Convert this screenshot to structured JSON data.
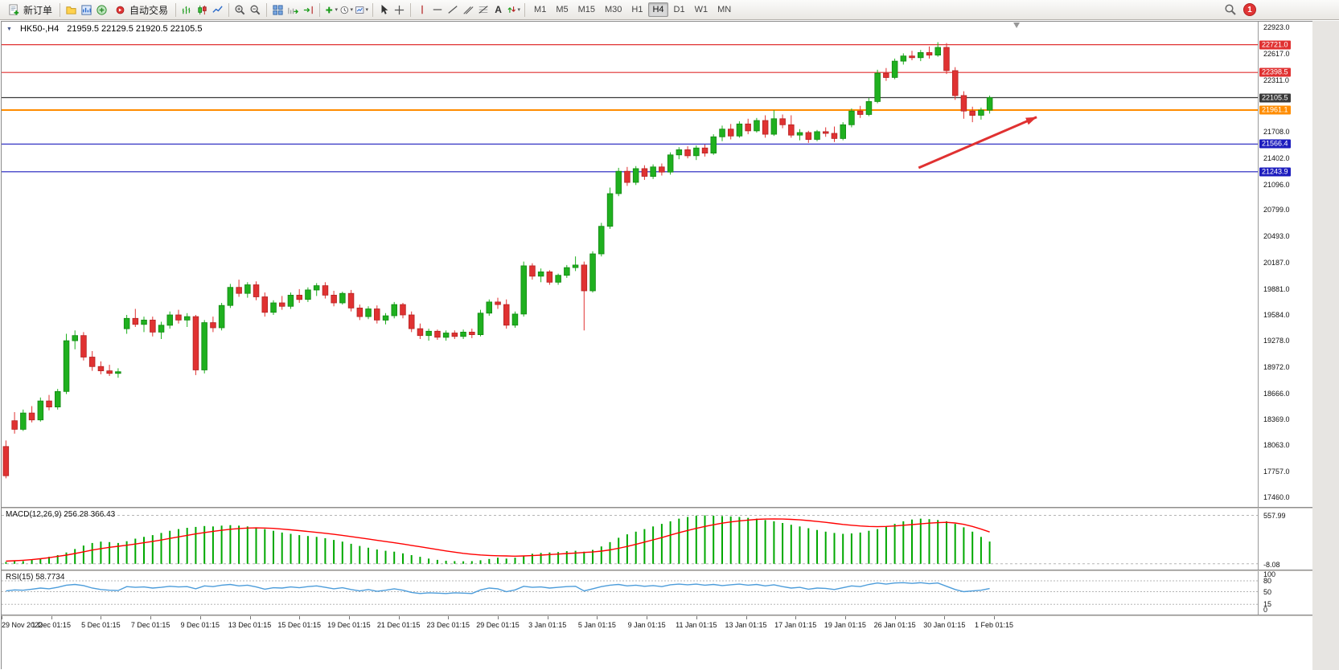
{
  "toolbar": {
    "new_order": "新订单",
    "autotrading": "自动交易",
    "timeframes": [
      "M1",
      "M5",
      "M15",
      "M30",
      "H1",
      "H4",
      "D1",
      "W1",
      "MN"
    ],
    "active_timeframe": "H4",
    "badge_count": "1"
  },
  "chart_window": {
    "symbol_period": "HK50-,H4",
    "ohlc_text": "21959.5 22129.5 21920.5 22105.5"
  },
  "chart_data": {
    "type": "candlestick",
    "symbol": "HK50",
    "period": "H4",
    "last_ohlc": {
      "open": 21959.5,
      "high": 22129.5,
      "low": 21920.5,
      "close": 22105.5
    },
    "price_range": [
      17460.0,
      22923.0
    ],
    "shift_fraction": 0.79,
    "up_color": "#1fb01f",
    "down_color": "#e03232",
    "up_border": "#128812",
    "down_border": "#b42222",
    "price_axis_labels": [
      "22923.0",
      "22617.0",
      "22311.0",
      "21708.0",
      "21402.0",
      "21096.0",
      "20799.0",
      "20493.0",
      "20187.0",
      "19881.0",
      "19584.0",
      "19278.0",
      "18972.0",
      "18666.0",
      "18369.0",
      "18063.0",
      "17757.0",
      "17460.0"
    ],
    "levels": [
      {
        "price": 22721.0,
        "badge": "22721.0",
        "color": "#e03131",
        "width": 1.2
      },
      {
        "price": 22398.5,
        "badge": "22398.5",
        "color": "#e03131",
        "width": 1.2
      },
      {
        "price": 22105.5,
        "badge": "22105.5",
        "color": "#3a3a3a",
        "width": 1.2
      },
      {
        "price": 21961.1,
        "badge": "21961.1",
        "color": "#ff8c00",
        "width": 2
      },
      {
        "price": 21566.4,
        "badge": "21566.4",
        "color": "#1d1dbe",
        "width": 1.2
      },
      {
        "price": 21243.9,
        "badge": "21243.9",
        "color": "#1d1dbe",
        "width": 1.2
      }
    ],
    "arrow": {
      "x_frac_from": 0.73,
      "price_from": 21290,
      "x_frac_to": 0.824,
      "price_to": 21880,
      "color": "#e03131"
    },
    "time_labels": [
      "29 Nov 2022",
      "1 Dec 01:15",
      "5 Dec 01:15",
      "7 Dec 01:15",
      "9 Dec 01:15",
      "13 Dec 01:15",
      "15 Dec 01:15",
      "19 Dec 01:15",
      "21 Dec 01:15",
      "23 Dec 01:15",
      "29 Dec 01:15",
      "3 Jan 01:15",
      "5 Jan 01:15",
      "9 Jan 01:15",
      "11 Jan 01:15",
      "13 Jan 01:15",
      "17 Jan 01:15",
      "19 Jan 01:15",
      "26 Jan 01:15",
      "30 Jan 01:15",
      "1 Feb 01:15"
    ],
    "candles": [
      [
        18050,
        18120,
        17680,
        17710
      ],
      [
        18350,
        18450,
        18200,
        18250
      ],
      [
        18250,
        18480,
        18230,
        18440
      ],
      [
        18440,
        18520,
        18330,
        18360
      ],
      [
        18360,
        18620,
        18340,
        18580
      ],
      [
        18580,
        18650,
        18470,
        18510
      ],
      [
        18510,
        18720,
        18480,
        18690
      ],
      [
        18690,
        19360,
        18660,
        19280
      ],
      [
        19280,
        19400,
        19180,
        19340
      ],
      [
        19340,
        19380,
        19050,
        19090
      ],
      [
        19090,
        19160,
        18930,
        18980
      ],
      [
        18980,
        19040,
        18890,
        18930
      ],
      [
        18930,
        19000,
        18870,
        18900
      ],
      [
        18900,
        18960,
        18850,
        18920
      ],
      [
        19420,
        19580,
        19360,
        19540
      ],
      [
        19540,
        19650,
        19440,
        19470
      ],
      [
        19470,
        19560,
        19380,
        19520
      ],
      [
        19520,
        19560,
        19330,
        19380
      ],
      [
        19380,
        19500,
        19300,
        19460
      ],
      [
        19460,
        19620,
        19420,
        19580
      ],
      [
        19580,
        19640,
        19480,
        19520
      ],
      [
        19520,
        19600,
        19440,
        19560
      ],
      [
        19560,
        19580,
        18880,
        18940
      ],
      [
        18940,
        19520,
        18900,
        19490
      ],
      [
        19490,
        19560,
        19380,
        19430
      ],
      [
        19430,
        19720,
        19400,
        19690
      ],
      [
        19690,
        19940,
        19660,
        19900
      ],
      [
        19900,
        19990,
        19790,
        19830
      ],
      [
        19830,
        19960,
        19780,
        19930
      ],
      [
        19930,
        19970,
        19750,
        19790
      ],
      [
        19790,
        19840,
        19560,
        19610
      ],
      [
        19610,
        19750,
        19580,
        19720
      ],
      [
        19720,
        19800,
        19640,
        19680
      ],
      [
        19680,
        19840,
        19650,
        19810
      ],
      [
        19810,
        19880,
        19720,
        19760
      ],
      [
        19760,
        19900,
        19730,
        19870
      ],
      [
        19870,
        19950,
        19800,
        19920
      ],
      [
        19920,
        19960,
        19770,
        19810
      ],
      [
        19810,
        19860,
        19680,
        19720
      ],
      [
        19720,
        19850,
        19700,
        19830
      ],
      [
        19830,
        19870,
        19620,
        19660
      ],
      [
        19660,
        19700,
        19520,
        19560
      ],
      [
        19560,
        19680,
        19530,
        19650
      ],
      [
        19650,
        19690,
        19480,
        19520
      ],
      [
        19520,
        19600,
        19470,
        19570
      ],
      [
        19570,
        19730,
        19540,
        19700
      ],
      [
        19700,
        19720,
        19540,
        19580
      ],
      [
        19580,
        19620,
        19380,
        19420
      ],
      [
        19420,
        19480,
        19300,
        19340
      ],
      [
        19340,
        19420,
        19280,
        19390
      ],
      [
        19390,
        19410,
        19290,
        19320
      ],
      [
        19320,
        19400,
        19280,
        19370
      ],
      [
        19370,
        19400,
        19300,
        19330
      ],
      [
        19330,
        19410,
        19300,
        19380
      ],
      [
        19380,
        19420,
        19310,
        19350
      ],
      [
        19350,
        19640,
        19330,
        19600
      ],
      [
        19600,
        19760,
        19570,
        19730
      ],
      [
        19730,
        19780,
        19650,
        19700
      ],
      [
        19700,
        19760,
        19420,
        19460
      ],
      [
        19460,
        19620,
        19430,
        19590
      ],
      [
        19590,
        20200,
        19560,
        20150
      ],
      [
        20150,
        20180,
        19990,
        20030
      ],
      [
        20030,
        20120,
        19960,
        20080
      ],
      [
        20080,
        20100,
        19930,
        19960
      ],
      [
        19960,
        20060,
        19930,
        20040
      ],
      [
        20040,
        20160,
        20010,
        20130
      ],
      [
        20130,
        20260,
        20090,
        20160
      ],
      [
        20160,
        20200,
        19400,
        19860
      ],
      [
        19860,
        20320,
        19840,
        20290
      ],
      [
        20290,
        20650,
        20260,
        20610
      ],
      [
        20610,
        21060,
        20580,
        20990
      ],
      [
        20990,
        21290,
        20960,
        21250
      ],
      [
        21250,
        21300,
        21080,
        21120
      ],
      [
        21120,
        21310,
        21090,
        21280
      ],
      [
        21280,
        21320,
        21150,
        21190
      ],
      [
        21190,
        21330,
        21160,
        21300
      ],
      [
        21300,
        21340,
        21200,
        21240
      ],
      [
        21240,
        21470,
        21210,
        21440
      ],
      [
        21440,
        21530,
        21390,
        21500
      ],
      [
        21500,
        21540,
        21400,
        21430
      ],
      [
        21430,
        21550,
        21380,
        21520
      ],
      [
        21520,
        21560,
        21420,
        21460
      ],
      [
        21460,
        21680,
        21440,
        21650
      ],
      [
        21650,
        21780,
        21600,
        21740
      ],
      [
        21740,
        21800,
        21620,
        21660
      ],
      [
        21660,
        21830,
        21640,
        21800
      ],
      [
        21800,
        21860,
        21680,
        21720
      ],
      [
        21720,
        21870,
        21700,
        21840
      ],
      [
        21840,
        21900,
        21640,
        21680
      ],
      [
        21680,
        21960,
        21660,
        21860
      ],
      [
        21860,
        21910,
        21750,
        21790
      ],
      [
        21790,
        21900,
        21640,
        21670
      ],
      [
        21670,
        21740,
        21610,
        21700
      ],
      [
        21700,
        21720,
        21580,
        21620
      ],
      [
        21620,
        21730,
        21600,
        21710
      ],
      [
        21710,
        21760,
        21650,
        21690
      ],
      [
        21690,
        21770,
        21590,
        21630
      ],
      [
        21630,
        21820,
        21610,
        21790
      ],
      [
        21790,
        21980,
        21760,
        21950
      ],
      [
        21950,
        22010,
        21870,
        21910
      ],
      [
        21910,
        22100,
        21890,
        22060
      ],
      [
        22060,
        22430,
        22040,
        22390
      ],
      [
        22390,
        22450,
        22300,
        22340
      ],
      [
        22340,
        22560,
        22320,
        22530
      ],
      [
        22530,
        22620,
        22490,
        22590
      ],
      [
        22590,
        22650,
        22540,
        22570
      ],
      [
        22570,
        22660,
        22530,
        22630
      ],
      [
        22630,
        22700,
        22560,
        22600
      ],
      [
        22600,
        22750,
        22580,
        22690
      ],
      [
        22690,
        22740,
        22380,
        22420
      ],
      [
        22420,
        22460,
        22080,
        22130
      ],
      [
        22130,
        22180,
        21860,
        21950
      ],
      [
        21950,
        22000,
        21820,
        21900
      ],
      [
        21900,
        21990,
        21850,
        21960
      ],
      [
        21959.5,
        22129.5,
        21920.5,
        22105.5
      ]
    ],
    "macd": {
      "label": "MACD(12,26,9) 256.28 366.43",
      "range": [
        -30,
        600
      ],
      "axis_labels": [
        "557.99",
        "-8.08"
      ],
      "histogram_color": "#00a800",
      "signal_color": "#ff0000",
      "histogram": [
        20,
        35,
        30,
        45,
        60,
        80,
        100,
        130,
        170,
        210,
        240,
        255,
        250,
        240,
        260,
        290,
        310,
        330,
        355,
        380,
        400,
        415,
        425,
        435,
        430,
        440,
        445,
        440,
        430,
        420,
        400,
        380,
        360,
        345,
        330,
        320,
        310,
        295,
        275,
        255,
        230,
        205,
        185,
        165,
        150,
        140,
        120,
        100,
        80,
        60,
        45,
        35,
        30,
        28,
        30,
        40,
        55,
        70,
        60,
        70,
        95,
        115,
        125,
        130,
        135,
        145,
        150,
        140,
        160,
        200,
        250,
        300,
        340,
        370,
        400,
        430,
        460,
        490,
        520,
        540,
        555,
        558,
        555,
        550,
        545,
        540,
        530,
        520,
        505,
        490,
        470,
        450,
        430,
        410,
        390,
        370,
        355,
        345,
        350,
        360,
        380,
        400,
        430,
        460,
        490,
        510,
        520,
        515,
        505,
        490,
        460,
        420,
        370,
        310,
        256.28
      ],
      "signal": [
        30,
        35,
        40,
        48,
        58,
        70,
        85,
        100,
        118,
        138,
        158,
        175,
        190,
        202,
        214,
        228,
        242,
        258,
        274,
        292,
        310,
        328,
        344,
        360,
        374,
        386,
        398,
        406,
        412,
        414,
        412,
        408,
        400,
        392,
        382,
        372,
        362,
        352,
        340,
        328,
        314,
        300,
        286,
        270,
        256,
        242,
        228,
        212,
        196,
        180,
        164,
        148,
        134,
        120,
        110,
        102,
        96,
        92,
        90,
        88,
        90,
        94,
        100,
        106,
        112,
        118,
        124,
        130,
        136,
        146,
        160,
        178,
        200,
        224,
        250,
        276,
        302,
        330,
        358,
        384,
        408,
        430,
        450,
        468,
        482,
        494,
        504,
        512,
        516,
        518,
        516,
        512,
        506,
        498,
        488,
        478,
        466,
        454,
        444,
        436,
        430,
        428,
        430,
        436,
        444,
        452,
        460,
        468,
        474,
        478,
        470,
        455,
        430,
        400,
        366.43
      ]
    },
    "rsi": {
      "label": "RSI(15) 58.7734",
      "range": [
        0,
        100
      ],
      "levels": [
        80,
        50,
        15
      ],
      "axis_labels": [
        "100",
        "80",
        "50",
        "15",
        "0"
      ],
      "line_color": "#4d9ddb",
      "values": [
        52,
        55,
        54,
        57,
        60,
        58,
        62,
        68,
        70,
        67,
        60,
        56,
        54,
        53,
        64,
        62,
        63,
        60,
        62,
        65,
        63,
        64,
        58,
        66,
        64,
        68,
        70,
        66,
        68,
        63,
        57,
        61,
        60,
        63,
        61,
        64,
        66,
        62,
        58,
        61,
        56,
        52,
        56,
        51,
        54,
        58,
        54,
        48,
        45,
        47,
        46,
        45,
        47,
        46,
        45,
        55,
        60,
        58,
        50,
        55,
        65,
        62,
        63,
        60,
        62,
        64,
        65,
        52,
        58,
        64,
        68,
        70,
        66,
        68,
        65,
        67,
        64,
        69,
        71,
        69,
        71,
        68,
        70,
        67,
        69,
        71,
        68,
        70,
        66,
        69,
        64,
        60,
        62,
        57,
        60,
        59,
        56,
        61,
        66,
        64,
        70,
        74,
        71,
        74,
        75,
        73,
        75,
        72,
        74,
        65,
        56,
        50,
        52,
        54,
        58.77
      ]
    }
  }
}
